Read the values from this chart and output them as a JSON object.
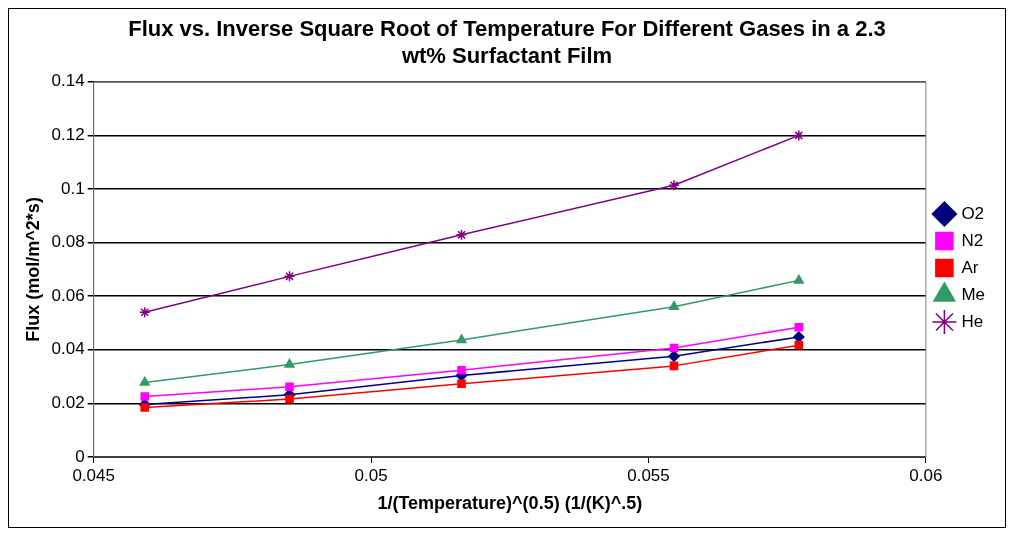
{
  "chart_data": {
    "type": "line",
    "title": "Flux vs. Inverse Square Root of Temperature For Different Gases in a 2.3 wt% Surfactant Film",
    "xlabel": "1/(Temperature)^(0.5) (1/(K)^.5)",
    "ylabel": "Flux (mol/m^2*s)",
    "x": [
      0.04592,
      0.04853,
      0.05163,
      0.05546,
      0.05771
    ],
    "series": [
      {
        "name": "O2",
        "color": "#000080",
        "marker": "diamond",
        "values": [
          0.0196,
          0.0232,
          0.0304,
          0.0376,
          0.0448
        ]
      },
      {
        "name": "N2",
        "color": "#ff00ff",
        "marker": "square",
        "values": [
          0.0226,
          0.0262,
          0.0324,
          0.0407,
          0.0484
        ]
      },
      {
        "name": "Ar",
        "color": "#ff0000",
        "marker": "square",
        "values": [
          0.0185,
          0.0216,
          0.0273,
          0.034,
          0.0417
        ]
      },
      {
        "name": "Me",
        "color": "#339966",
        "marker": "triangle",
        "values": [
          0.0278,
          0.0345,
          0.0437,
          0.0561,
          0.0659
        ]
      },
      {
        "name": "He",
        "color": "#800080",
        "marker": "cross",
        "values": [
          0.054,
          0.0674,
          0.0829,
          0.1014,
          0.12
        ]
      }
    ],
    "xlim": [
      0.045,
      0.06
    ],
    "xticks": [
      0.045,
      0.05,
      0.055,
      0.06
    ],
    "ylim": [
      0,
      0.14
    ],
    "yticks": [
      0,
      0.02,
      0.04,
      0.06,
      0.08,
      0.1,
      0.12,
      0.14
    ],
    "grid": "y",
    "legend": "right",
    "line_style": "solid"
  }
}
